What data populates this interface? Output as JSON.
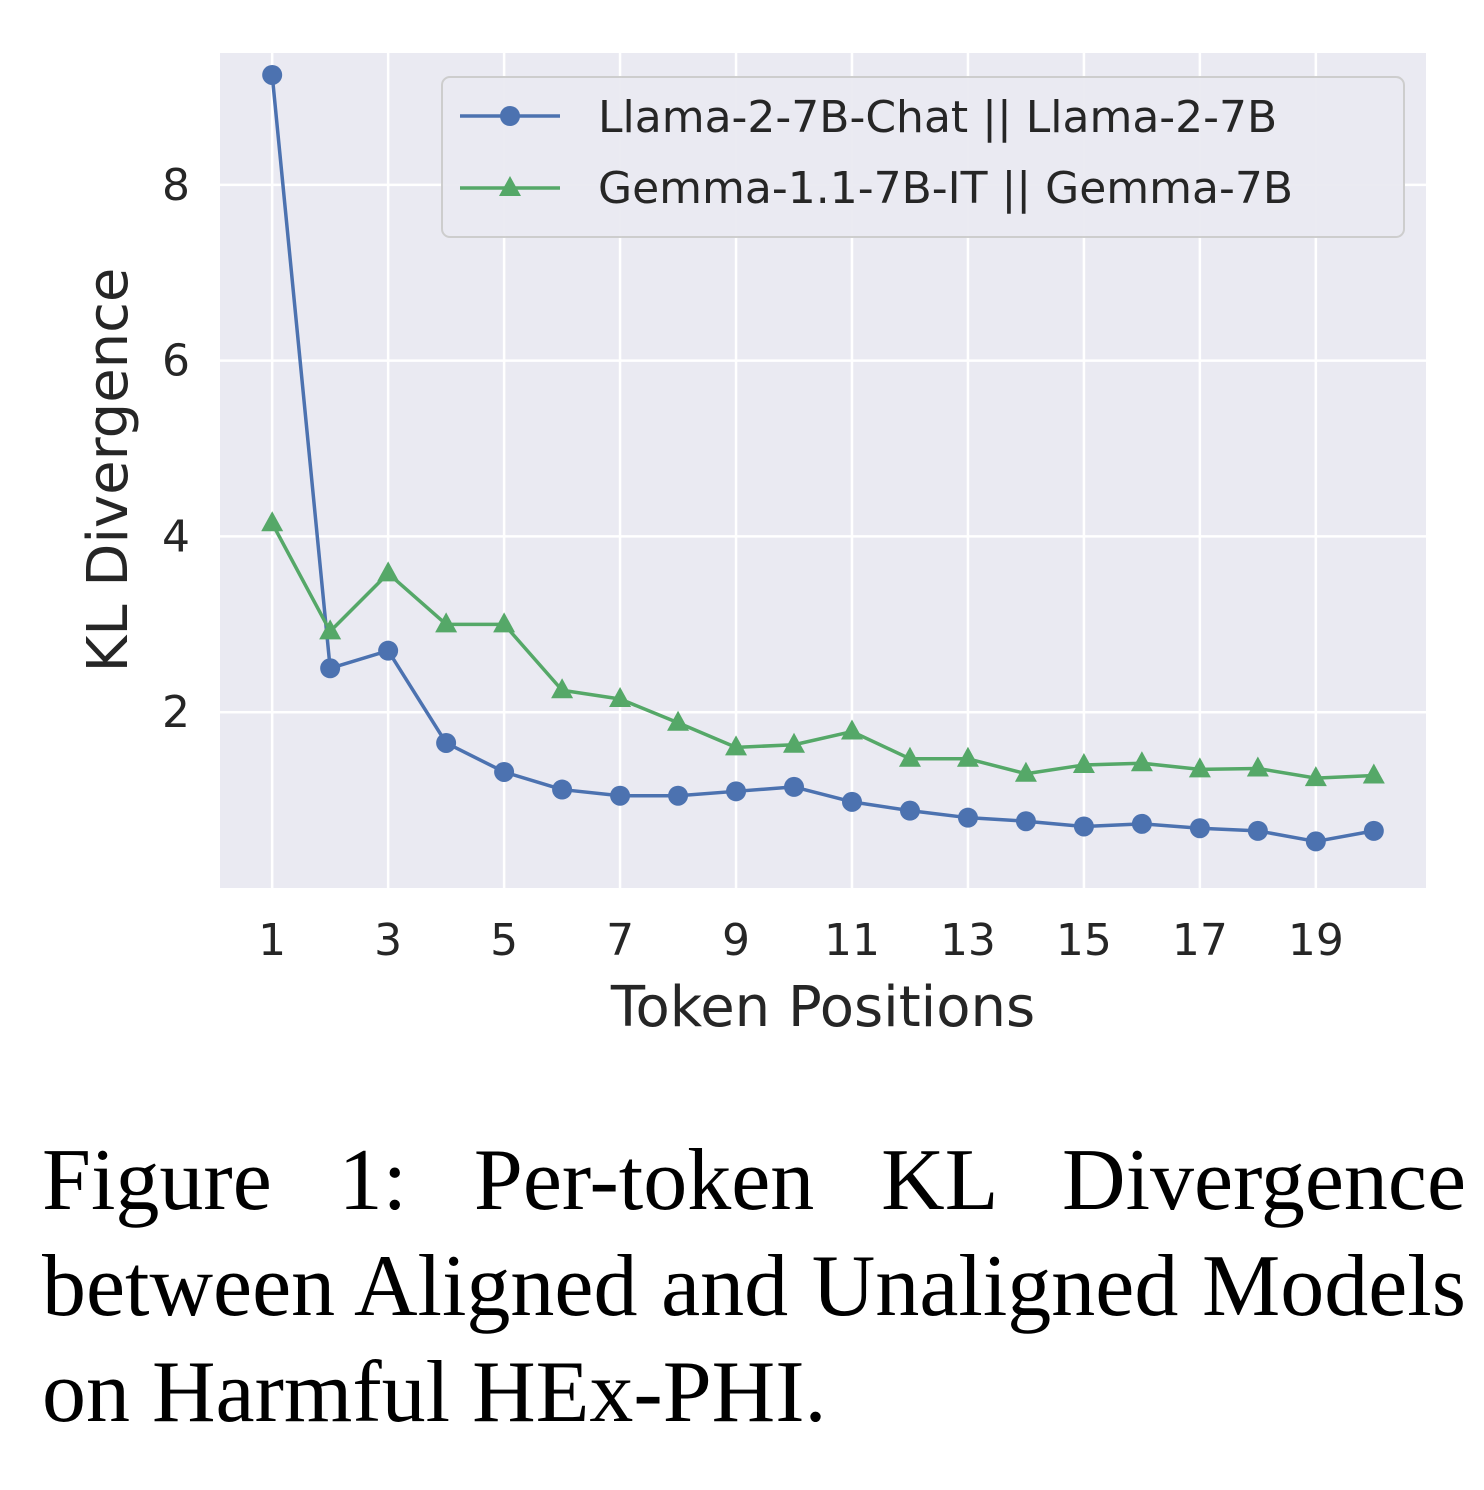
{
  "chart_data": {
    "type": "line",
    "x": [
      1,
      2,
      3,
      4,
      5,
      6,
      7,
      8,
      9,
      10,
      11,
      12,
      13,
      14,
      15,
      16,
      17,
      18,
      19,
      20
    ],
    "xticks": [
      1,
      3,
      5,
      7,
      9,
      11,
      13,
      15,
      17,
      19
    ],
    "yticks": [
      2,
      4,
      6,
      8
    ],
    "xlim": [
      0.1,
      20.9
    ],
    "ylim": [
      0.0,
      9.5
    ],
    "xlabel": "Token Positions",
    "ylabel": "KL Divergence",
    "grid": true,
    "legend_position": "top-right",
    "series": [
      {
        "name": "Llama-2-7B-Chat || Llama-2-7B",
        "color": "#4c72b0",
        "marker": "circle",
        "values": [
          9.25,
          2.5,
          2.7,
          1.65,
          1.32,
          1.12,
          1.05,
          1.05,
          1.1,
          1.15,
          0.98,
          0.88,
          0.8,
          0.76,
          0.7,
          0.73,
          0.68,
          0.65,
          0.53,
          0.65
        ]
      },
      {
        "name": "Gemma-1.1-7B-IT || Gemma-7B",
        "color": "#55a868",
        "marker": "triangle",
        "values": [
          4.15,
          2.92,
          3.58,
          3.0,
          3.0,
          2.25,
          2.15,
          1.88,
          1.6,
          1.63,
          1.78,
          1.47,
          1.47,
          1.3,
          1.4,
          1.42,
          1.35,
          1.36,
          1.25,
          1.28
        ]
      }
    ]
  },
  "caption": "Figure 1: Per-token KL Divergence between Aligned and Unaligned Models on Harmful HEx-PHI."
}
